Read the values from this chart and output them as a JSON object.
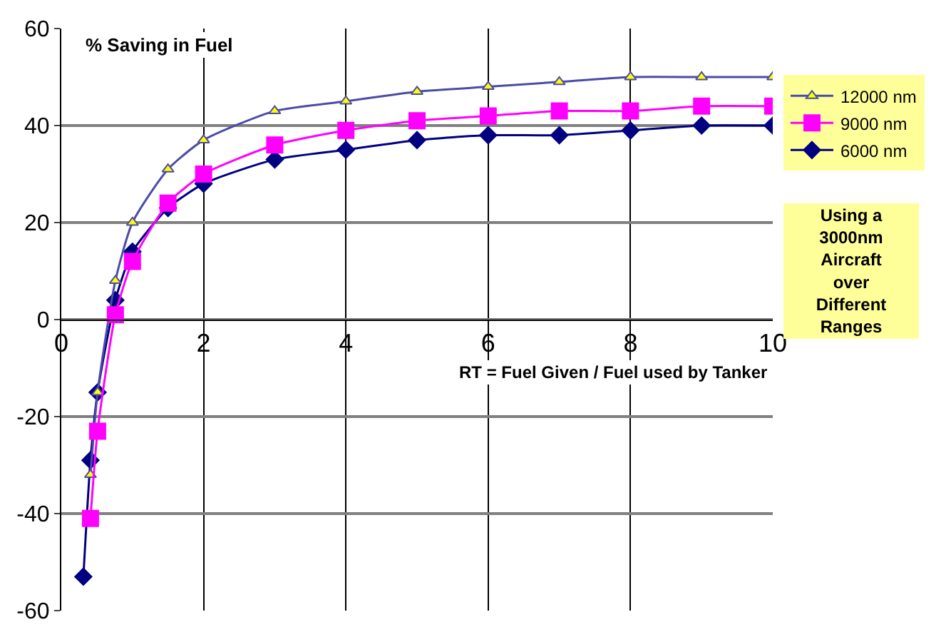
{
  "chart_data": {
    "type": "line",
    "title": "% Saving in Fuel",
    "xlabel": "RT = Fuel Given / Fuel used by Tanker",
    "annotations": [
      "Using a 3000nm Aircraft over Different Ranges"
    ],
    "xlim": [
      0,
      10
    ],
    "xticks": [
      0,
      2,
      4,
      6,
      8,
      10
    ],
    "ylim": [
      -60,
      60
    ],
    "yticks": [
      -60,
      -40,
      -20,
      0,
      20,
      40,
      60
    ],
    "grid": true,
    "legend": "right",
    "series": [
      {
        "name": "12000 nm",
        "color": "#4b4ba8",
        "marker": "triangle",
        "x": [
          0.41,
          0.51,
          0.76,
          1,
          1.5,
          2,
          3,
          4,
          5,
          6,
          7,
          8,
          9,
          10
        ],
        "values": [
          -32,
          -15,
          8,
          20,
          31,
          37,
          43,
          45,
          47,
          48,
          49,
          50,
          50,
          50
        ]
      },
      {
        "name": "9000 nm",
        "color": "#ff00ff",
        "marker": "square",
        "x": [
          0.41,
          0.51,
          0.76,
          1,
          1.5,
          2,
          3,
          4,
          5,
          6,
          7,
          8,
          9,
          10
        ],
        "values": [
          -41,
          -23,
          1,
          12,
          24,
          30,
          36,
          39,
          41,
          42,
          43,
          43,
          44,
          44
        ]
      },
      {
        "name": "6000 nm",
        "color": "#000080",
        "marker": "diamond",
        "x": [
          0.31,
          0.41,
          0.51,
          0.76,
          1,
          1.5,
          2,
          3,
          4,
          5,
          6,
          7,
          8,
          9,
          10
        ],
        "values": [
          -53,
          -29,
          -15,
          4,
          14,
          23,
          28,
          33,
          35,
          37,
          38,
          38,
          39,
          40,
          40
        ]
      }
    ]
  }
}
